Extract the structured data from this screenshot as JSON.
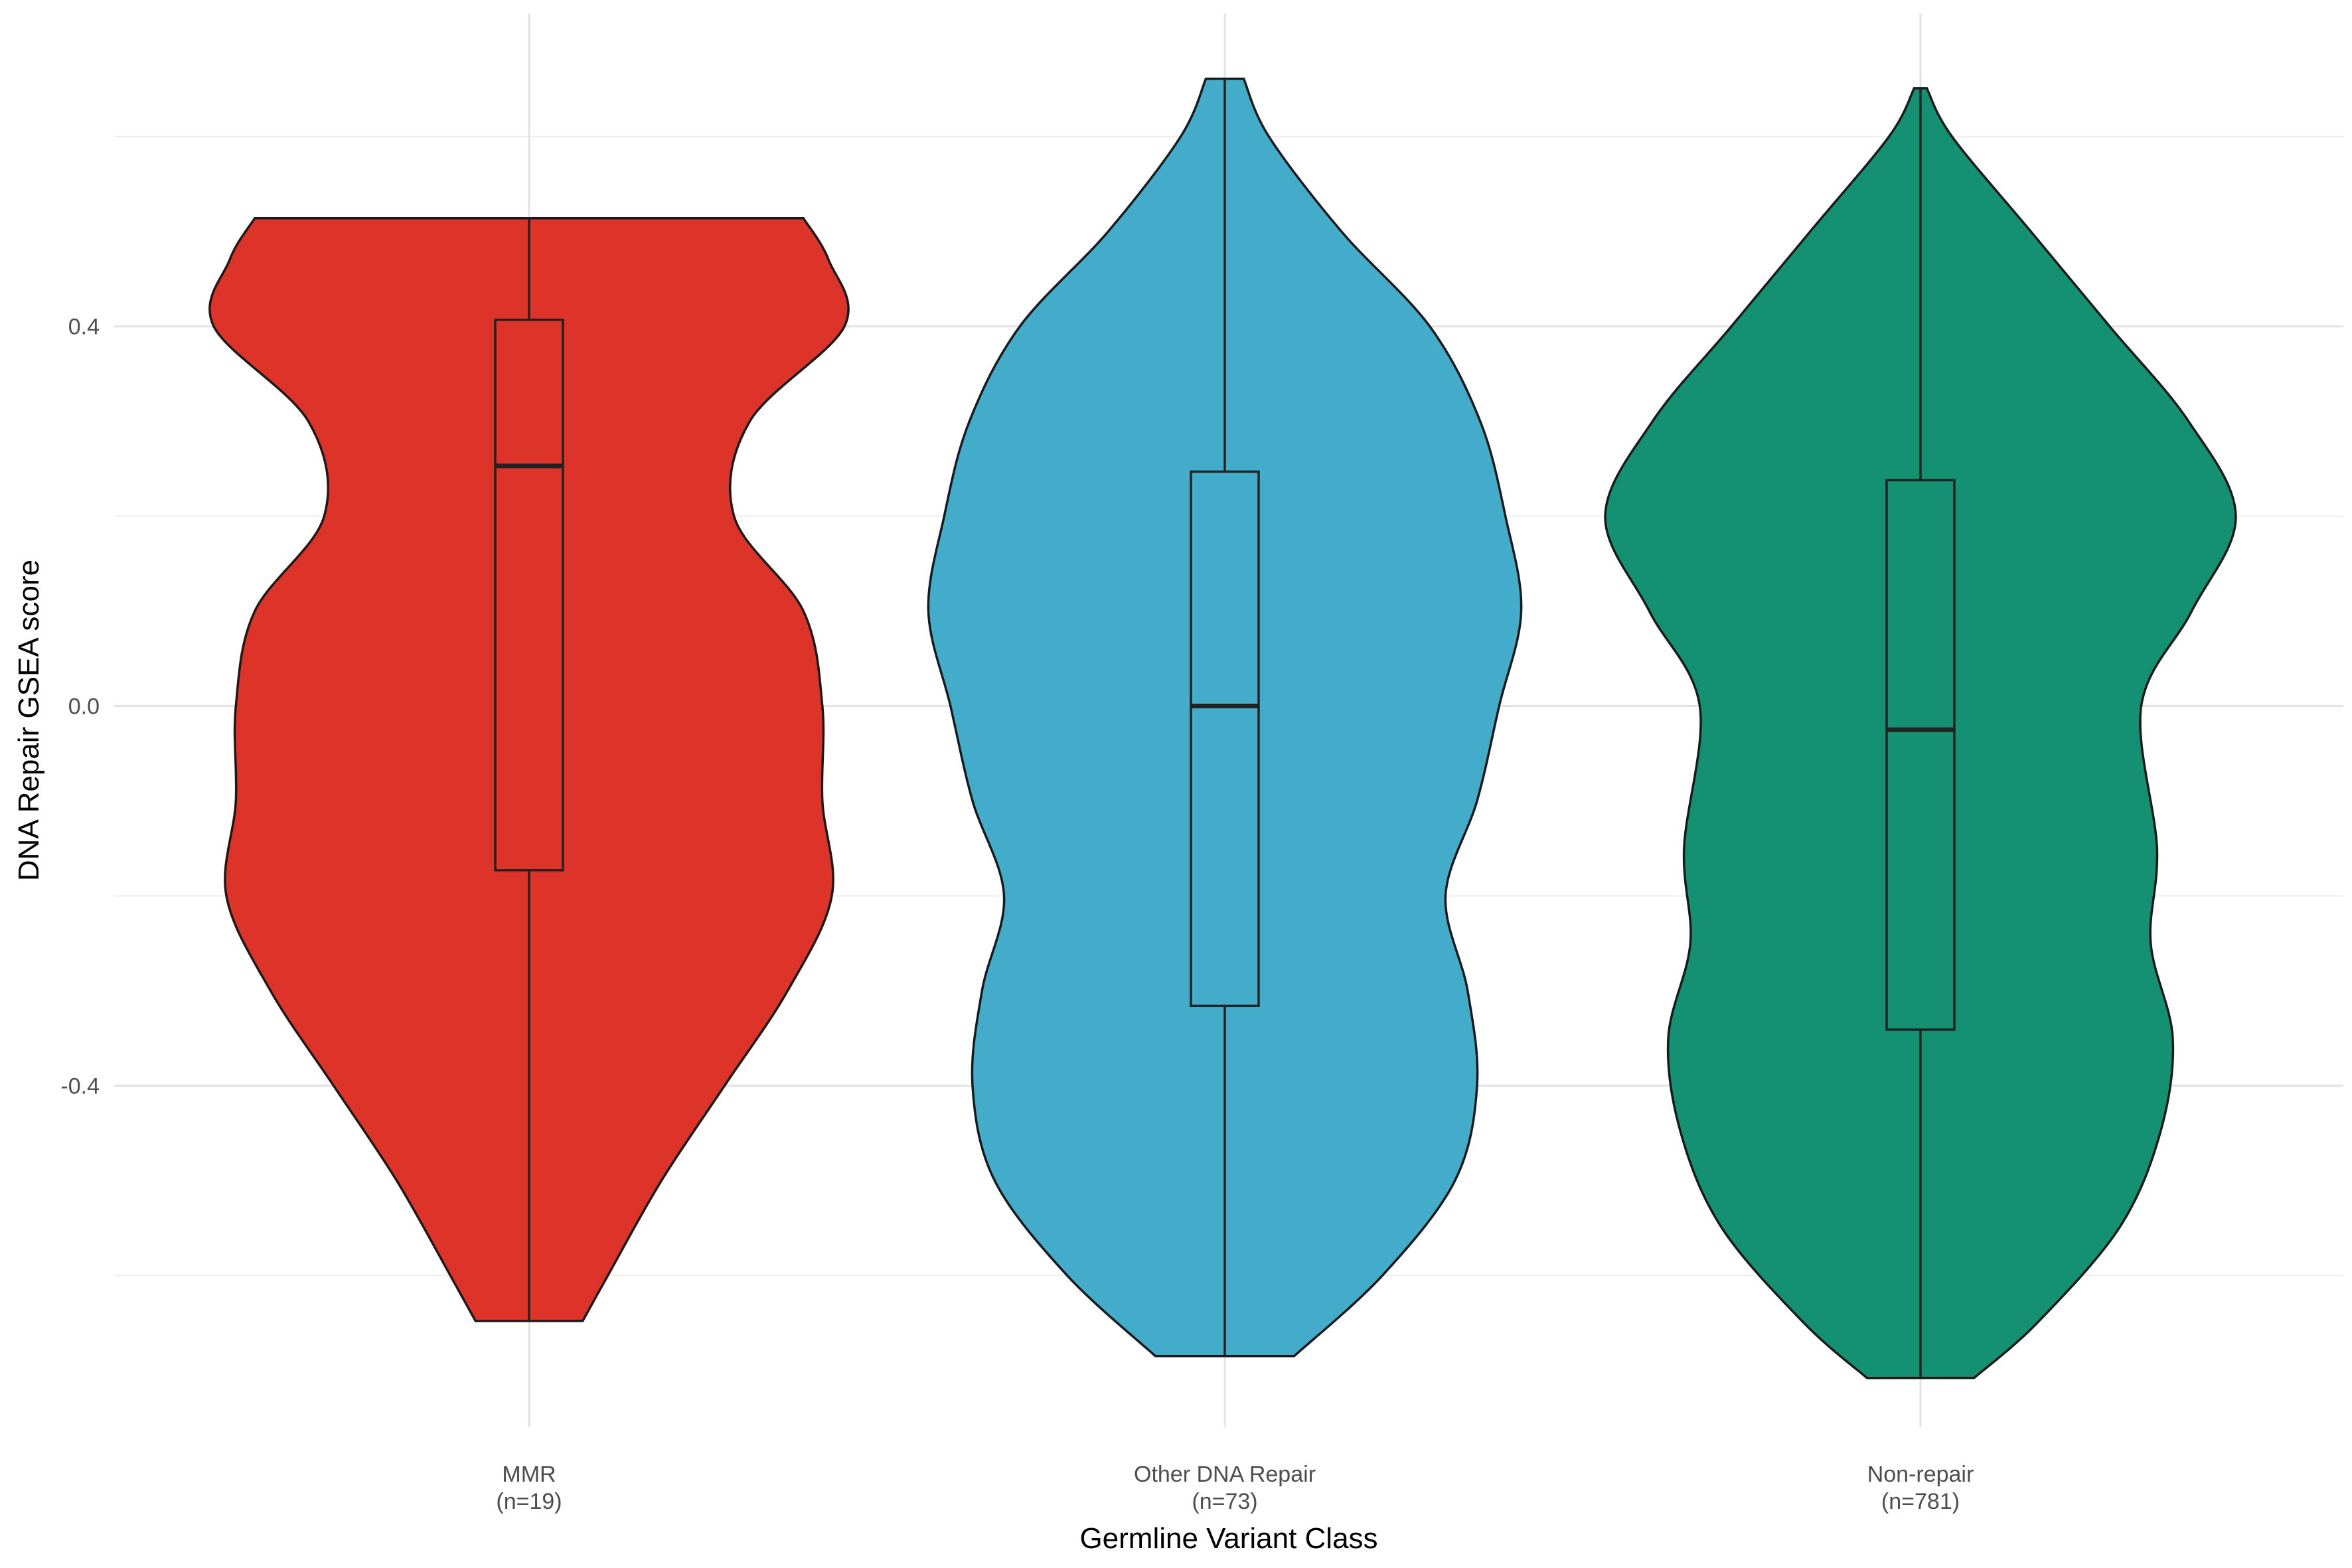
{
  "chart_data": {
    "type": "violin",
    "xlabel": "Germline Variant Class",
    "ylabel": "DNA Repair GSEA score",
    "ylim": [
      -0.76,
      0.73
    ],
    "y_ticks": [
      {
        "value": -0.4,
        "label": "-0.4"
      },
      {
        "value": 0.0,
        "label": "0.0"
      },
      {
        "value": 0.4,
        "label": "0.4"
      }
    ],
    "grid": true,
    "legend": "none",
    "categories": [
      {
        "name": "MMR",
        "n_label": "(n=19)",
        "color": "#dd3328",
        "box": {
          "min": -0.648,
          "q1": -0.173,
          "median": 0.253,
          "q3": 0.407,
          "max": 0.514
        },
        "density": [
          [
            -0.648,
            0.17
          ],
          [
            -0.6,
            0.25
          ],
          [
            -0.5,
            0.42
          ],
          [
            -0.4,
            0.62
          ],
          [
            -0.3,
            0.82
          ],
          [
            -0.2,
            0.96
          ],
          [
            -0.1,
            0.93
          ],
          [
            0.0,
            0.93
          ],
          [
            0.1,
            0.87
          ],
          [
            0.2,
            0.65
          ],
          [
            0.3,
            0.7
          ],
          [
            0.4,
            1.0
          ],
          [
            0.47,
            0.95
          ],
          [
            0.514,
            0.87
          ]
        ]
      },
      {
        "name": "Other DNA Repair",
        "n_label": "(n=73)",
        "color": "#43acca",
        "box": {
          "min": -0.685,
          "q1": -0.316,
          "median": 0.0,
          "q3": 0.247,
          "max": 0.661
        },
        "density": [
          [
            -0.685,
            0.22
          ],
          [
            -0.6,
            0.5
          ],
          [
            -0.5,
            0.73
          ],
          [
            -0.4,
            0.8
          ],
          [
            -0.3,
            0.77
          ],
          [
            -0.2,
            0.7
          ],
          [
            -0.1,
            0.8
          ],
          [
            0.0,
            0.87
          ],
          [
            0.1,
            0.94
          ],
          [
            0.2,
            0.89
          ],
          [
            0.3,
            0.81
          ],
          [
            0.4,
            0.65
          ],
          [
            0.5,
            0.37
          ],
          [
            0.6,
            0.14
          ],
          [
            0.661,
            0.06
          ]
        ]
      },
      {
        "name": "Non-repair",
        "n_label": "(n=781)",
        "color": "#139172",
        "box": {
          "min": -0.708,
          "q1": -0.341,
          "median": -0.025,
          "q3": 0.238,
          "max": 0.651
        },
        "density": [
          [
            -0.708,
            0.17
          ],
          [
            -0.65,
            0.37
          ],
          [
            -0.55,
            0.63
          ],
          [
            -0.45,
            0.76
          ],
          [
            -0.35,
            0.8
          ],
          [
            -0.25,
            0.73
          ],
          [
            -0.15,
            0.75
          ],
          [
            0.0,
            0.7
          ],
          [
            0.1,
            0.86
          ],
          [
            0.2,
            1.0
          ],
          [
            0.3,
            0.85
          ],
          [
            0.4,
            0.6
          ],
          [
            0.5,
            0.35
          ],
          [
            0.6,
            0.1
          ],
          [
            0.651,
            0.02
          ]
        ]
      }
    ]
  }
}
